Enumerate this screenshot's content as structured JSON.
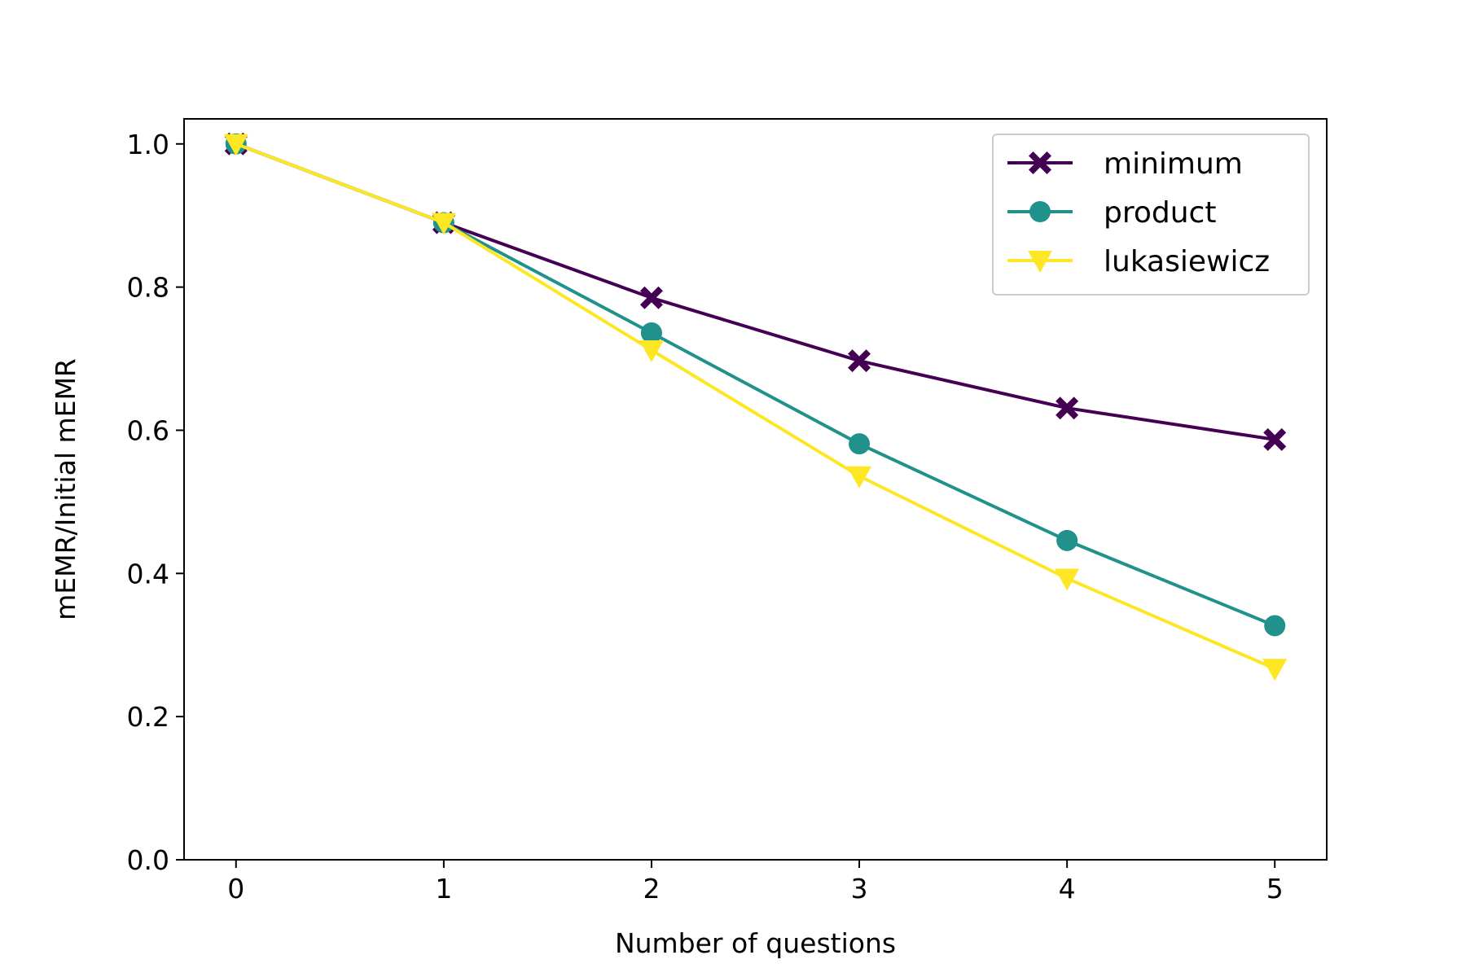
{
  "chart_data": {
    "type": "line",
    "title": "",
    "xlabel": "Number of questions",
    "ylabel": "mEMR/Initial mEMR",
    "x": [
      0,
      1,
      2,
      3,
      4,
      5
    ],
    "xlim": [
      -0.25,
      5.25
    ],
    "ylim": [
      0.0,
      1.035
    ],
    "xticks": [
      "0",
      "1",
      "2",
      "3",
      "4",
      "5"
    ],
    "yticks": [
      "0.0",
      "0.2",
      "0.4",
      "0.6",
      "0.8",
      "1.0"
    ],
    "grid": false,
    "legend_position": "top-right",
    "series": [
      {
        "name": "minimum",
        "values": [
          1.0,
          0.89,
          0.785,
          0.697,
          0.631,
          0.587
        ],
        "color": "#440154",
        "marker": "x-filled"
      },
      {
        "name": "product",
        "values": [
          1.0,
          0.89,
          0.736,
          0.581,
          0.446,
          0.327
        ],
        "color": "#21918c",
        "marker": "circle"
      },
      {
        "name": "lukasiewicz",
        "values": [
          1.0,
          0.89,
          0.712,
          0.536,
          0.393,
          0.267
        ],
        "color": "#fde725",
        "marker": "triangle-down"
      }
    ]
  }
}
